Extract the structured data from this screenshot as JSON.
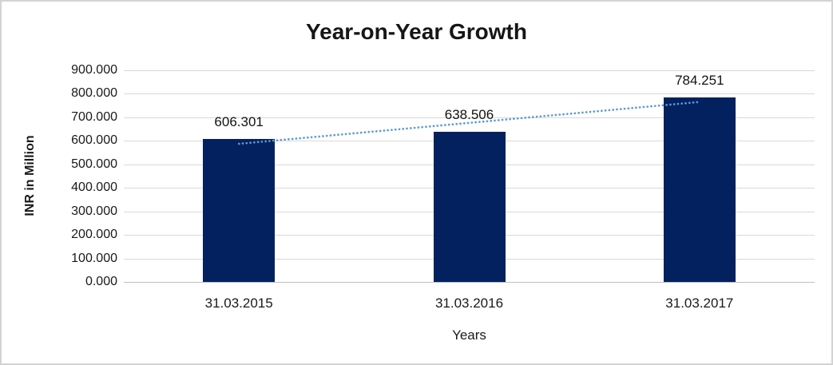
{
  "window": {
    "background": "#ffffff",
    "border_color": "#d3d3d3"
  },
  "chart_data": {
    "type": "bar",
    "title": "Year-on-Year Growth",
    "xlabel": "Years",
    "ylabel": "INR in Million",
    "categories": [
      "31.03.2015",
      "31.03.2016",
      "31.03.2017"
    ],
    "values": [
      606.301,
      638.506,
      784.251
    ],
    "value_labels": [
      "606.301",
      "638.506",
      "784.251"
    ],
    "y_ticks": [
      "900.000",
      "800.000",
      "700.000",
      "600.000",
      "500.000",
      "400.000",
      "300.000",
      "200.000",
      "100.000",
      "0.000"
    ],
    "ylim": [
      0,
      900
    ],
    "y_step": 100,
    "grid": "horizontal",
    "legend": "none",
    "bar_color": "#04215f",
    "gridline_color": "#d9d9d9",
    "axis_line_color": "#bfbfbf",
    "trendline": {
      "type": "linear",
      "style": "dotted",
      "color": "#5b9bd5"
    }
  }
}
